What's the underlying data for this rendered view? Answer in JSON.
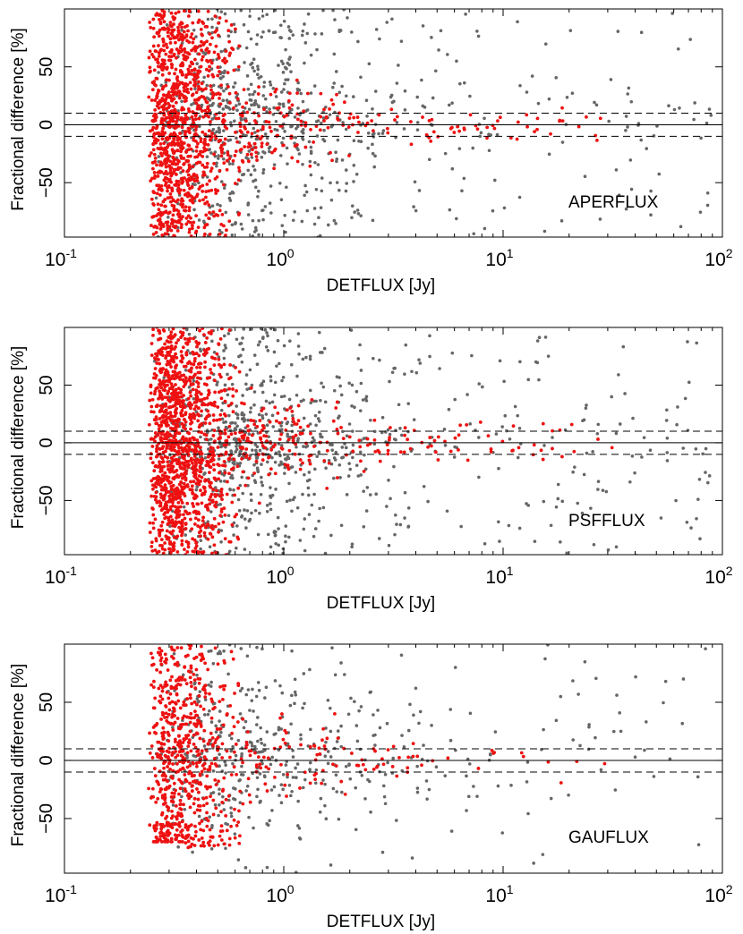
{
  "colors": {
    "red_points": "#ee1111",
    "grey_points": "#666666",
    "axes": "#000000"
  },
  "chart_data": [
    {
      "type": "scatter",
      "panel_label": "APERFLUX",
      "xlabel": "DETFLUX [Jy]",
      "ylabel": "Fractional difference [%]",
      "xscale": "log",
      "xlim": [
        0.1,
        100
      ],
      "ylim": [
        -97,
        100
      ],
      "xticks": [
        {
          "base": "10",
          "exp": "-1"
        },
        {
          "base": "10",
          "exp": "0"
        },
        {
          "base": "10",
          "exp": "1"
        },
        {
          "base": "10",
          "exp": "2"
        }
      ],
      "yticks": [
        "50",
        "0",
        "−50"
      ],
      "ytick_values": [
        50,
        0,
        -50
      ],
      "reference_lines": [
        {
          "y": 0,
          "style": "solid"
        },
        {
          "y": 10,
          "style": "dashed"
        },
        {
          "y": -10,
          "style": "dashed"
        }
      ],
      "series": [
        {
          "name": "red",
          "n_points": 1300
        },
        {
          "name": "grey",
          "n_points": 750
        }
      ]
    },
    {
      "type": "scatter",
      "panel_label": "PSFFLUX",
      "xlabel": "DETFLUX [Jy]",
      "ylabel": "Fractional difference [%]",
      "xscale": "log",
      "xlim": [
        0.1,
        100
      ],
      "ylim": [
        -97,
        100
      ],
      "xticks": [
        {
          "base": "10",
          "exp": "-1"
        },
        {
          "base": "10",
          "exp": "0"
        },
        {
          "base": "10",
          "exp": "1"
        },
        {
          "base": "10",
          "exp": "2"
        }
      ],
      "yticks": [
        "50",
        "0",
        "−50"
      ],
      "ytick_values": [
        50,
        0,
        -50
      ],
      "reference_lines": [
        {
          "y": 0,
          "style": "solid"
        },
        {
          "y": 10,
          "style": "dashed"
        },
        {
          "y": -10,
          "style": "dashed"
        }
      ],
      "series": [
        {
          "name": "red",
          "n_points": 1500
        },
        {
          "name": "grey",
          "n_points": 850
        }
      ]
    },
    {
      "type": "scatter",
      "panel_label": "GAUFLUX",
      "xlabel": "DETFLUX [Jy]",
      "ylabel": "Fractional difference [%]",
      "xscale": "log",
      "xlim": [
        0.1,
        100
      ],
      "ylim": [
        -97,
        100
      ],
      "xticks": [
        {
          "base": "10",
          "exp": "-1"
        },
        {
          "base": "10",
          "exp": "0"
        },
        {
          "base": "10",
          "exp": "1"
        },
        {
          "base": "10",
          "exp": "2"
        }
      ],
      "yticks": [
        "50",
        "0",
        "−50"
      ],
      "ytick_values": [
        50,
        0,
        -50
      ],
      "reference_lines": [
        {
          "y": 0,
          "style": "solid"
        },
        {
          "y": 10,
          "style": "dashed"
        },
        {
          "y": -10,
          "style": "dashed"
        }
      ],
      "series": [
        {
          "name": "red",
          "n_points": 800
        },
        {
          "name": "grey",
          "n_points": 480
        }
      ]
    }
  ]
}
